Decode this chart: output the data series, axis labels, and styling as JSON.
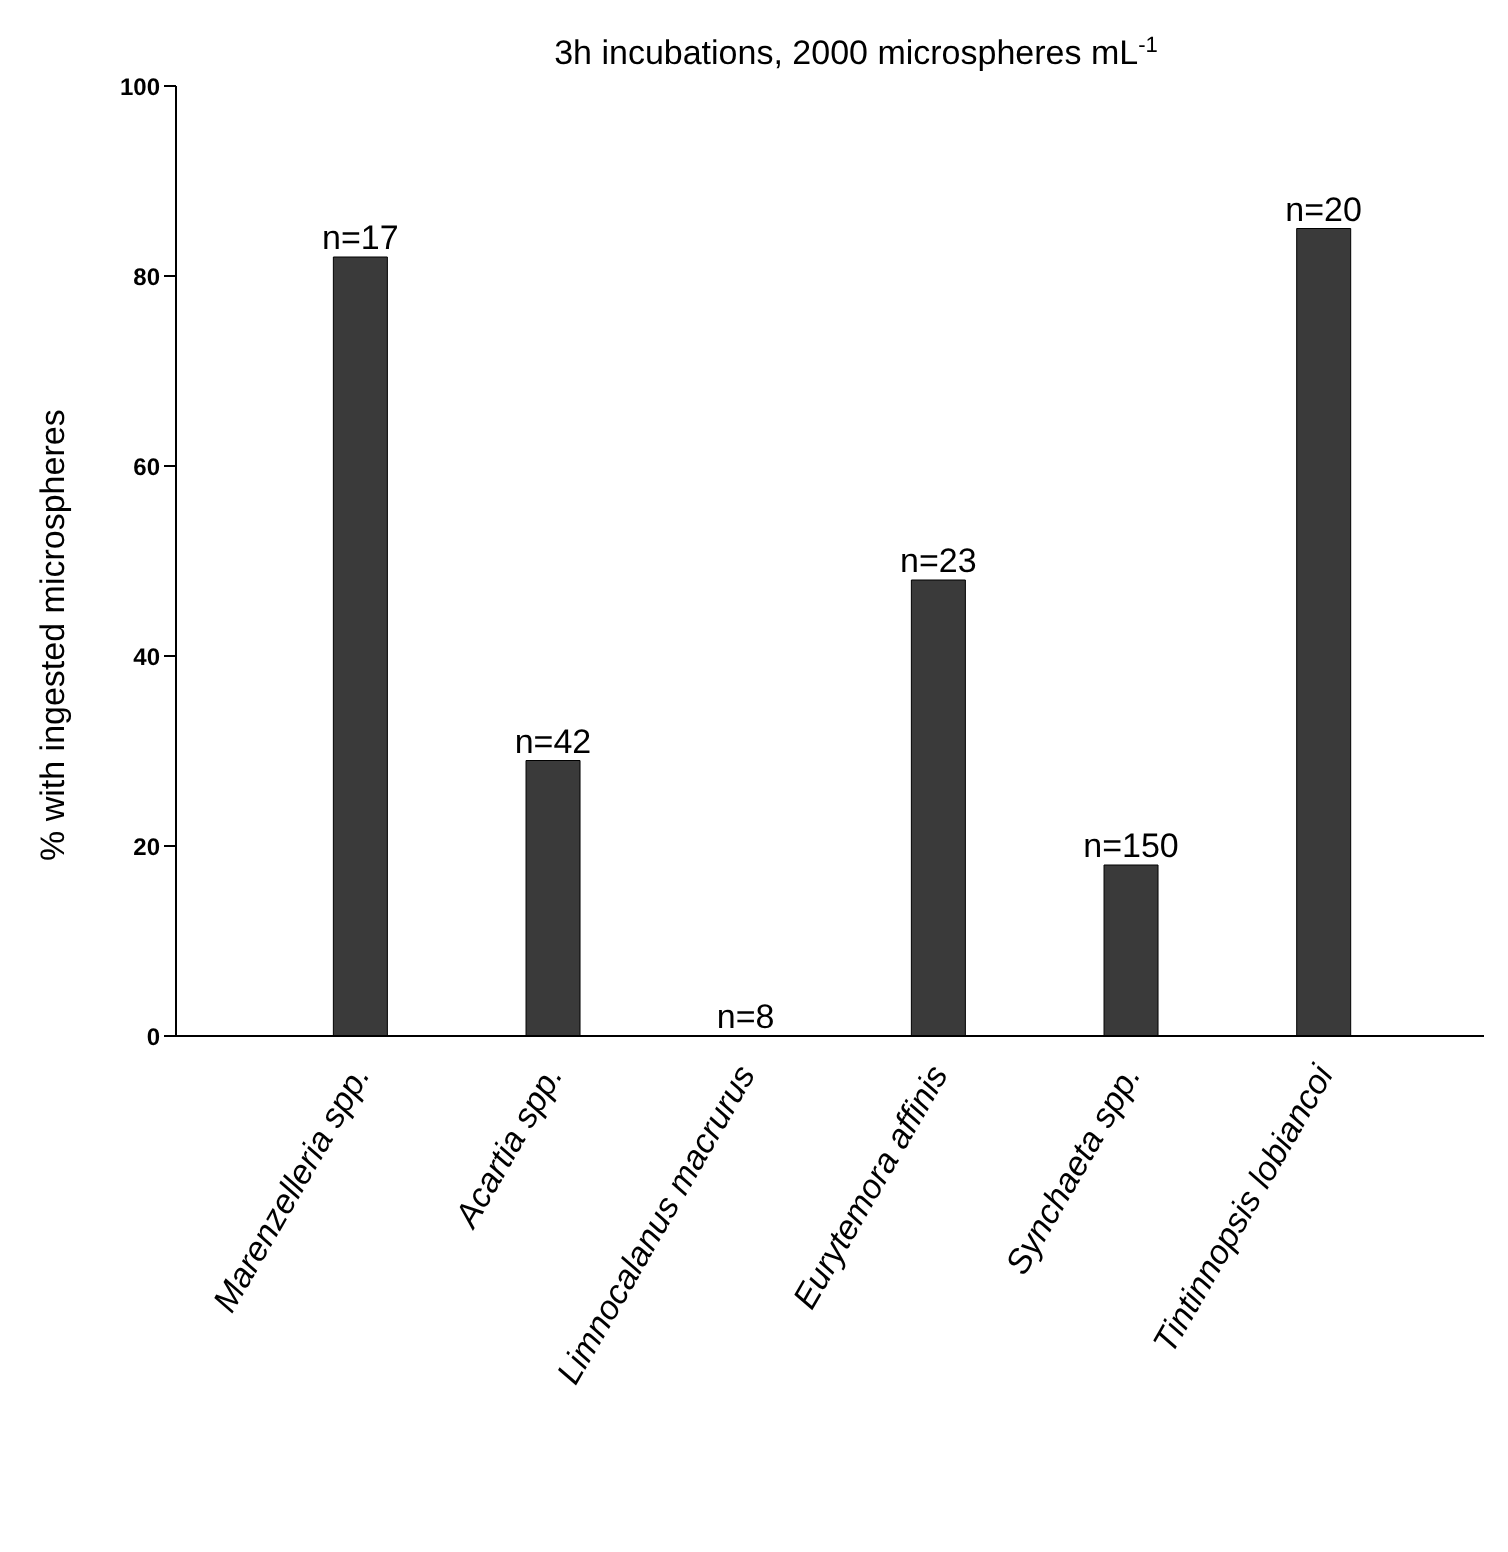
{
  "chart_data": {
    "type": "bar",
    "title": "3h incubations, 2000 microspheres mL$^{-1}$",
    "ylabel": "% with ingested microspheres",
    "categories": [
      "Marenzelleria spp.",
      "Acartia spp.",
      "Limnocalanus macrurus",
      "Eurytemora affinis",
      "Synchaeta spp.",
      "Tintinnopsis lobiancoi"
    ],
    "values": [
      82,
      29,
      0,
      48,
      18,
      85
    ],
    "annotations": [
      {
        "text": "n=17",
        "x": "Marenzelleria spp.",
        "y": 82
      },
      {
        "text": "n=42",
        "x": "Acartia spp.",
        "y": 29
      },
      {
        "text": "n=8",
        "x": "Limnocalanus macrurus",
        "y": 0
      },
      {
        "text": "n=23",
        "x": "Eurytemora affinis",
        "y": 48
      },
      {
        "text": "n=150",
        "x": "Synchaeta spp.",
        "y": 18
      },
      {
        "text": "n=20",
        "x": "Tintinnopsis lobiancoi",
        "y": 85
      }
    ],
    "color": "#3a3a3a",
    "ylim": [
      0,
      100
    ],
    "yticks": [
      0,
      20,
      40,
      60,
      80,
      100
    ],
    "grid": false
  }
}
